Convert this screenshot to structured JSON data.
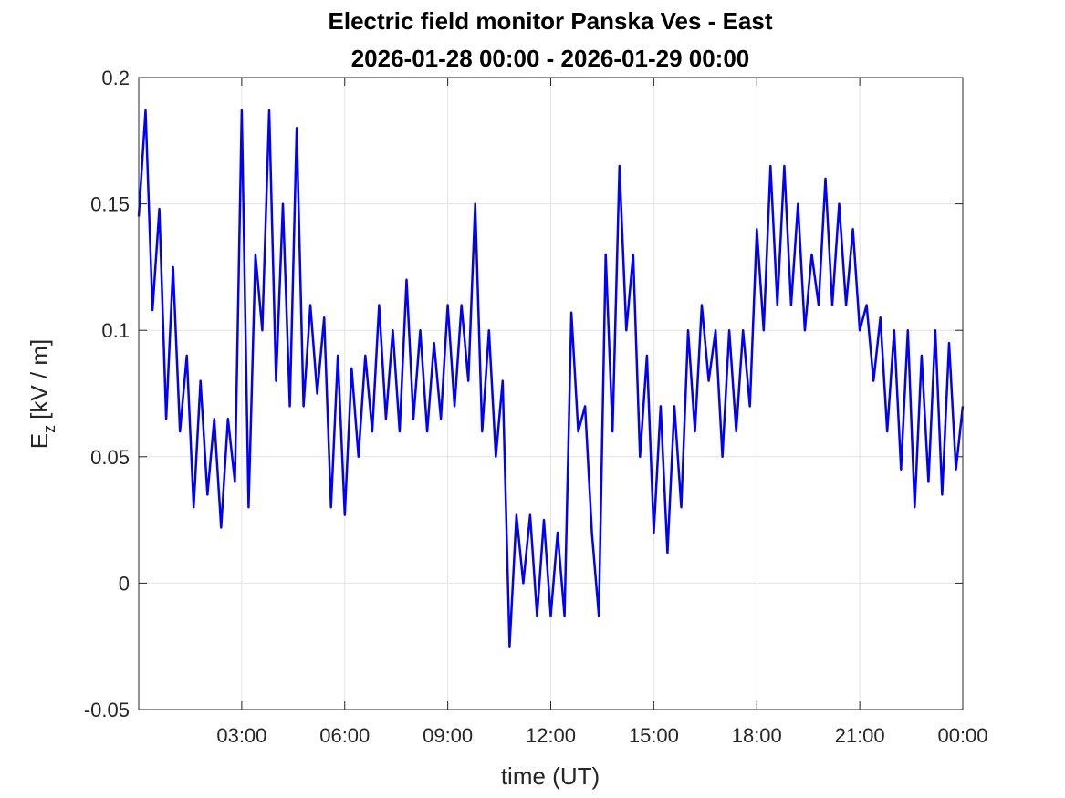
{
  "chart_data": {
    "type": "line",
    "title": "Electric field monitor Panska Ves - East",
    "subtitle": "2026-01-28 00:00 - 2026-01-29 00:00",
    "xlabel": "time (UT)",
    "ylabel": {
      "base": "E",
      "sub": "z",
      "rest": "[kV / m]"
    },
    "xlim": [
      0,
      24
    ],
    "xticks": [
      {
        "value": 3,
        "label": "03:00"
      },
      {
        "value": 6,
        "label": "06:00"
      },
      {
        "value": 9,
        "label": "09:00"
      },
      {
        "value": 12,
        "label": "12:00"
      },
      {
        "value": 15,
        "label": "15:00"
      },
      {
        "value": 18,
        "label": "18:00"
      },
      {
        "value": 21,
        "label": "21:00"
      },
      {
        "value": 24,
        "label": "00:00"
      }
    ],
    "ylim": [
      -0.05,
      0.2
    ],
    "yticks": [
      -0.05,
      0,
      0.05,
      0.1,
      0.15,
      0.2
    ],
    "grid": true,
    "x": [
      0,
      0.2,
      0.4,
      0.6,
      0.8,
      1,
      1.2,
      1.4,
      1.6,
      1.8,
      2,
      2.2,
      2.4,
      2.6,
      2.8,
      3,
      3.2,
      3.4,
      3.6,
      3.8,
      4,
      4.2,
      4.4,
      4.6,
      4.8,
      5,
      5.2,
      5.4,
      5.6,
      5.8,
      6,
      6.2,
      6.4,
      6.6,
      6.8,
      7,
      7.2,
      7.4,
      7.6,
      7.8,
      8,
      8.2,
      8.4,
      8.6,
      8.8,
      9,
      9.2,
      9.4,
      9.6,
      9.8,
      10,
      10.2,
      10.4,
      10.6,
      10.8,
      11,
      11.2,
      11.4,
      11.6,
      11.8,
      12,
      12.2,
      12.4,
      12.6,
      12.8,
      13,
      13.2,
      13.4,
      13.6,
      13.8,
      14,
      14.2,
      14.4,
      14.6,
      14.8,
      15,
      15.2,
      15.4,
      15.6,
      15.8,
      16,
      16.2,
      16.4,
      16.6,
      16.8,
      17,
      17.2,
      17.4,
      17.6,
      17.8,
      18,
      18.2,
      18.4,
      18.6,
      18.8,
      19,
      19.2,
      19.4,
      19.6,
      19.8,
      20,
      20.2,
      20.4,
      20.6,
      20.8,
      21,
      21.2,
      21.4,
      21.6,
      21.8,
      22,
      22.2,
      22.4,
      22.6,
      22.8,
      23,
      23.2,
      23.4,
      23.6,
      23.8,
      24
    ],
    "series": [
      {
        "color": "#0000ff",
        "values": [
          0.145,
          0.187,
          0.108,
          0.148,
          0.065,
          0.125,
          0.06,
          0.09,
          0.03,
          0.08,
          0.035,
          0.065,
          0.022,
          0.065,
          0.04,
          0.187,
          0.03,
          0.13,
          0.1,
          0.187,
          0.08,
          0.15,
          0.07,
          0.18,
          0.07,
          0.11,
          0.075,
          0.105,
          0.03,
          0.09,
          0.027,
          0.085,
          0.05,
          0.09,
          0.06,
          0.11,
          0.065,
          0.1,
          0.06,
          0.12,
          0.065,
          0.1,
          0.06,
          0.095,
          0.065,
          0.11,
          0.07,
          0.11,
          0.08,
          0.15,
          0.06,
          0.1,
          0.05,
          0.08,
          -0.025,
          0.027,
          0,
          0.027,
          -0.013,
          0.025,
          -0.013,
          0.02,
          -0.013,
          0.107,
          0.06,
          0.07,
          0.02,
          -0.013,
          0.13,
          0.06,
          0.165,
          0.1,
          0.13,
          0.05,
          0.09,
          0.02,
          0.07,
          0.012,
          0.07,
          0.03,
          0.1,
          0.06,
          0.11,
          0.08,
          0.1,
          0.05,
          0.1,
          0.06,
          0.1,
          0.07,
          0.14,
          0.1,
          0.165,
          0.11,
          0.165,
          0.11,
          0.15,
          0.1,
          0.13,
          0.11,
          0.16,
          0.11,
          0.15,
          0.11,
          0.14,
          0.1,
          0.11,
          0.08,
          0.105,
          0.06,
          0.1,
          0.045,
          0.1,
          0.03,
          0.09,
          0.04,
          0.1,
          0.035,
          0.095,
          0.045,
          0.07
        ]
      }
    ]
  }
}
